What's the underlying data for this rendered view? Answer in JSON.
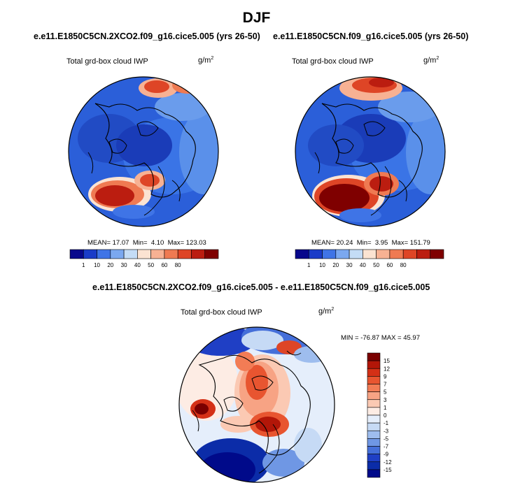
{
  "figure_title": "DJF",
  "left_panel": {
    "case": "e.e11.E1850C5CN.2XCO2.f09_g16.cice5.005 (yrs 26-50)",
    "variable": "Total grd-box cloud IWP",
    "units_base": "g/m",
    "units_exp": "2",
    "mean_label": "MEAN=",
    "mean": "17.07",
    "min_label": "Min=",
    "min": "4.10",
    "max_label": "Max=",
    "max": "123.03"
  },
  "right_panel": {
    "case": "e.e11.E1850C5CN.f09_g16.cice5.005 (yrs 26-50)",
    "variable": "Total grd-box cloud IWP",
    "units_base": "g/m",
    "units_exp": "2",
    "mean_label": "MEAN=",
    "mean": "20.24",
    "min_label": "Min=",
    "min": "3.95",
    "max_label": "Max=",
    "max": "151.79"
  },
  "diff_panel": {
    "case": "e.e11.E1850C5CN.2XCO2.f09_g16.cice5.005 - e.e11.E1850C5CN.f09_g16.cice5.005",
    "variable": "Total grd-box cloud IWP",
    "units_base": "g/m",
    "units_exp": "2",
    "minmax": "MIN = -76.87 MAX =  45.97"
  },
  "abs_colorbar": {
    "labels": [
      "1",
      "10",
      "20",
      "30",
      "40",
      "50",
      "60",
      "80"
    ],
    "colors": [
      "#08088c",
      "#1a3cc8",
      "#3f74e6",
      "#7ba8f0",
      "#c4dcf6",
      "#fbe3d2",
      "#f7b193",
      "#ef7a52",
      "#de4526",
      "#bb1d10",
      "#7f0000"
    ]
  },
  "diff_colorbar": {
    "labels": [
      "15",
      "12",
      "9",
      "7",
      "5",
      "3",
      "1",
      "0",
      "-1",
      "-3",
      "-5",
      "-7",
      "-9",
      "-12",
      "-15"
    ],
    "colors": [
      "#7a0000",
      "#b21608",
      "#d43016",
      "#e85530",
      "#f27c55",
      "#f7a384",
      "#fbc9b3",
      "#fdece4",
      "#e5eefb",
      "#c6daf5",
      "#9ebdee",
      "#6f97e4",
      "#456fd9",
      "#1f3fc5",
      "#0b2ca8",
      "#000a8a"
    ]
  },
  "colors": {
    "background": "#ffffff",
    "coastline": "#000000"
  }
}
